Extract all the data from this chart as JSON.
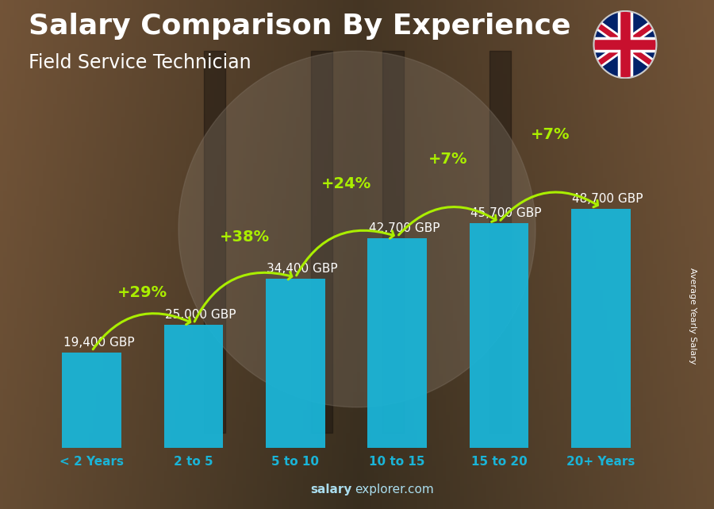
{
  "title": "Salary Comparison By Experience",
  "subtitle": "Field Service Technician",
  "categories": [
    "< 2 Years",
    "2 to 5",
    "5 to 10",
    "10 to 15",
    "15 to 20",
    "20+ Years"
  ],
  "values": [
    19400,
    25000,
    34400,
    42700,
    45700,
    48700
  ],
  "labels": [
    "19,400 GBP",
    "25,000 GBP",
    "34,400 GBP",
    "42,700 GBP",
    "45,700 GBP",
    "48,700 GBP"
  ],
  "pct_changes": [
    "+29%",
    "+38%",
    "+24%",
    "+7%",
    "+7%"
  ],
  "bar_color": "#1ab4d7",
  "pct_color": "#aaee00",
  "title_color": "#ffffff",
  "subtitle_color": "#ffffff",
  "xtick_color": "#1ab4d7",
  "bg_color_top": "#5a4a3a",
  "bg_color_bottom": "#2a1e14",
  "ylabel": "Average Yearly Salary",
  "watermark_salary": "salary",
  "watermark_rest": "explorer.com",
  "watermark_color": "#aaddee",
  "ylim": [
    0,
    58000
  ],
  "title_fontsize": 26,
  "subtitle_fontsize": 17,
  "bar_width": 0.58,
  "label_fontsize": 11,
  "pct_fontsize": 14,
  "xtick_fontsize": 11
}
